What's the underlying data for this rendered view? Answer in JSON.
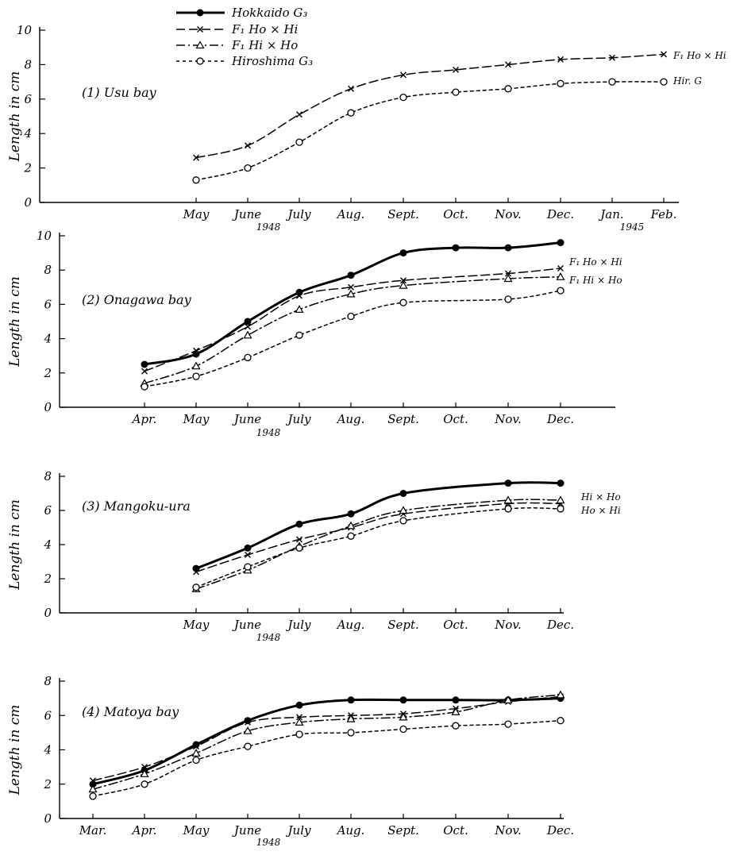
{
  "legend": {
    "entries": [
      {
        "label": "Hokkaido G₃",
        "series": "hokkaido"
      },
      {
        "label": "F₁ Ho × Hi",
        "series": "f1_ho_hi"
      },
      {
        "label": "F₁ Hi × Ho",
        "series": "f1_hi_ho"
      },
      {
        "label": "Hiroshima G₃",
        "series": "hiroshima"
      }
    ]
  },
  "styles": {
    "hokkaido": {
      "dash": "",
      "width": 3,
      "marker": "filled-circle"
    },
    "f1_ho_hi": {
      "dash": "11 5",
      "width": 1.5,
      "marker": "x"
    },
    "f1_hi_ho": {
      "dash": "11 4 2 4",
      "width": 1.5,
      "marker": "triangle"
    },
    "hiroshima": {
      "dash": "4 4",
      "width": 1.5,
      "marker": "open-circle"
    }
  },
  "chart_data": [
    {
      "type": "line",
      "title": "(1) Usu bay",
      "ylabel": "Length in cm",
      "ylim": [
        0,
        10
      ],
      "yticks": [
        0,
        2,
        4,
        6,
        8,
        10
      ],
      "categories": [
        "May",
        "June",
        "July",
        "Aug.",
        "Sept.",
        "Oct.",
        "Nov.",
        "Dec.",
        "Jan.",
        "Feb."
      ],
      "year_labels": [
        "1948",
        "1945"
      ],
      "series": [
        {
          "key": "f1_ho_hi",
          "end_label": "F₁ Ho × Hi",
          "values": [
            2.6,
            3.3,
            5.1,
            6.6,
            7.4,
            7.7,
            8.0,
            8.3,
            8.4,
            8.6
          ]
        },
        {
          "key": "hiroshima",
          "end_label": "Hir. G",
          "values": [
            1.3,
            2.0,
            3.5,
            5.2,
            6.1,
            6.4,
            6.6,
            6.9,
            7.0,
            7.0
          ]
        }
      ]
    },
    {
      "type": "line",
      "title": "(2) Onagawa bay",
      "ylabel": "Length in cm",
      "ylim": [
        0,
        10
      ],
      "yticks": [
        0,
        2,
        4,
        6,
        8,
        10
      ],
      "categories": [
        "Apr.",
        "May",
        "June",
        "July",
        "Aug.",
        "Sept.",
        "Oct.",
        "Nov.",
        "Dec."
      ],
      "year_labels": [
        "1948"
      ],
      "series": [
        {
          "key": "hokkaido",
          "values": [
            2.5,
            3.1,
            5.0,
            6.7,
            7.7,
            9.0,
            9.3,
            9.3,
            9.6
          ]
        },
        {
          "key": "f1_ho_hi",
          "end_label": "F₁ Ho × Hi",
          "values": [
            2.1,
            3.3,
            4.7,
            6.5,
            7.0,
            7.4,
            null,
            7.8,
            8.1
          ]
        },
        {
          "key": "f1_hi_ho",
          "end_label": "F₁ Hi × Ho",
          "values": [
            1.4,
            2.4,
            4.2,
            5.7,
            6.6,
            7.1,
            null,
            7.5,
            7.6
          ]
        },
        {
          "key": "hiroshima",
          "values": [
            1.2,
            1.8,
            2.9,
            4.2,
            5.3,
            6.1,
            null,
            6.3,
            6.8
          ]
        }
      ]
    },
    {
      "type": "line",
      "title": "(3) Mangoku-ura",
      "ylabel": "Length in cm",
      "ylim": [
        0,
        8
      ],
      "yticks": [
        0,
        2,
        4,
        6,
        8
      ],
      "categories": [
        "May",
        "June",
        "July",
        "Aug.",
        "Sept.",
        "Oct.",
        "Nov.",
        "Dec."
      ],
      "year_labels": [
        "1948"
      ],
      "series": [
        {
          "key": "hokkaido",
          "values": [
            2.6,
            3.8,
            5.2,
            5.8,
            7.0,
            null,
            7.6,
            7.6
          ]
        },
        {
          "key": "f1_ho_hi",
          "end_label": "Ho × Hi",
          "values": [
            2.4,
            3.4,
            4.3,
            5.0,
            5.8,
            null,
            6.4,
            6.4
          ]
        },
        {
          "key": "f1_hi_ho",
          "end_label": "Hi × Ho",
          "values": [
            1.4,
            2.5,
            3.9,
            5.1,
            6.0,
            null,
            6.6,
            6.6
          ]
        },
        {
          "key": "hiroshima",
          "values": [
            1.5,
            2.7,
            3.8,
            4.5,
            5.4,
            null,
            6.1,
            6.1
          ]
        }
      ]
    },
    {
      "type": "line",
      "title": "(4) Matoya bay",
      "ylabel": "Length in cm",
      "ylim": [
        0,
        8
      ],
      "yticks": [
        0,
        2,
        4,
        6,
        8
      ],
      "categories": [
        "Mar.",
        "Apr.",
        "May",
        "June",
        "July",
        "Aug.",
        "Sept.",
        "Oct.",
        "Nov.",
        "Dec."
      ],
      "year_labels": [
        "1948"
      ],
      "series": [
        {
          "key": "hokkaido",
          "values": [
            2.0,
            2.8,
            4.3,
            5.7,
            6.6,
            6.9,
            6.9,
            6.9,
            6.9,
            7.0
          ]
        },
        {
          "key": "f1_ho_hi",
          "values": [
            2.2,
            3.0,
            4.2,
            5.6,
            5.9,
            6.0,
            6.1,
            6.4,
            6.8,
            7.1
          ]
        },
        {
          "key": "f1_hi_ho",
          "values": [
            1.7,
            2.6,
            3.8,
            5.1,
            5.6,
            5.8,
            5.9,
            6.2,
            6.9,
            7.2
          ]
        },
        {
          "key": "hiroshima",
          "values": [
            1.3,
            2.0,
            3.4,
            4.2,
            4.9,
            5.0,
            5.2,
            5.4,
            5.5,
            5.7
          ]
        }
      ]
    }
  ]
}
